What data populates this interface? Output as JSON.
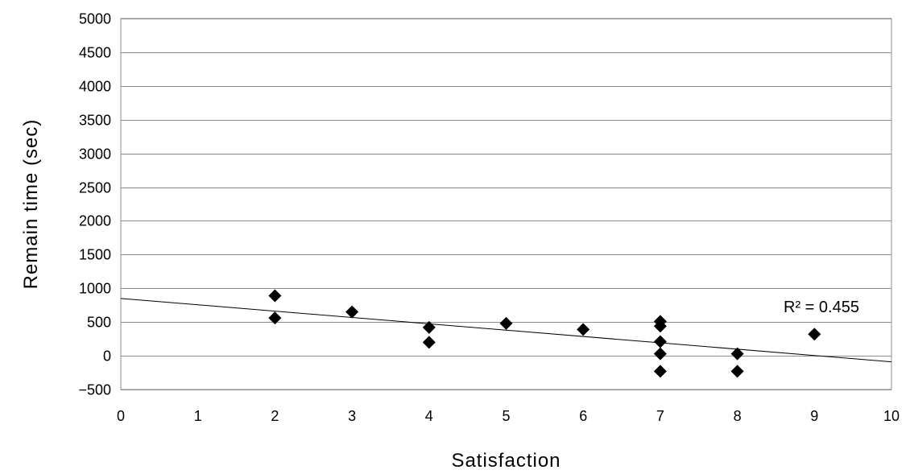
{
  "chart_data": {
    "type": "scatter",
    "title": "",
    "xlabel": "Satisfaction",
    "ylabel": "Remain time (sec)",
    "xlim": [
      0,
      10
    ],
    "ylim": [
      -500,
      5000
    ],
    "x_ticks": [
      0,
      1,
      2,
      3,
      4,
      5,
      6,
      7,
      8,
      9,
      10
    ],
    "y_ticks": [
      -500,
      0,
      500,
      1000,
      1500,
      2000,
      2500,
      3000,
      3500,
      4000,
      4500,
      5000
    ],
    "grid": "horizontal",
    "legend": "none",
    "marker": "diamond",
    "marker_color": "#000000",
    "series": [
      {
        "points": [
          {
            "x": 2,
            "y": 890
          },
          {
            "x": 2,
            "y": 560
          },
          {
            "x": 3,
            "y": 650
          },
          {
            "x": 4,
            "y": 420
          },
          {
            "x": 4,
            "y": 200
          },
          {
            "x": 5,
            "y": 480
          },
          {
            "x": 6,
            "y": 390
          },
          {
            "x": 7,
            "y": 510
          },
          {
            "x": 7,
            "y": 440
          },
          {
            "x": 7,
            "y": 210
          },
          {
            "x": 7,
            "y": 30
          },
          {
            "x": 7,
            "y": -230
          },
          {
            "x": 8,
            "y": 30
          },
          {
            "x": 8,
            "y": -230
          },
          {
            "x": 9,
            "y": 320
          }
        ]
      }
    ],
    "trendline": {
      "type": "linear",
      "intercept": 850,
      "slope": -94
    },
    "annotation": {
      "text": "R² = 0.455",
      "x": 8.6,
      "y": 860
    }
  }
}
